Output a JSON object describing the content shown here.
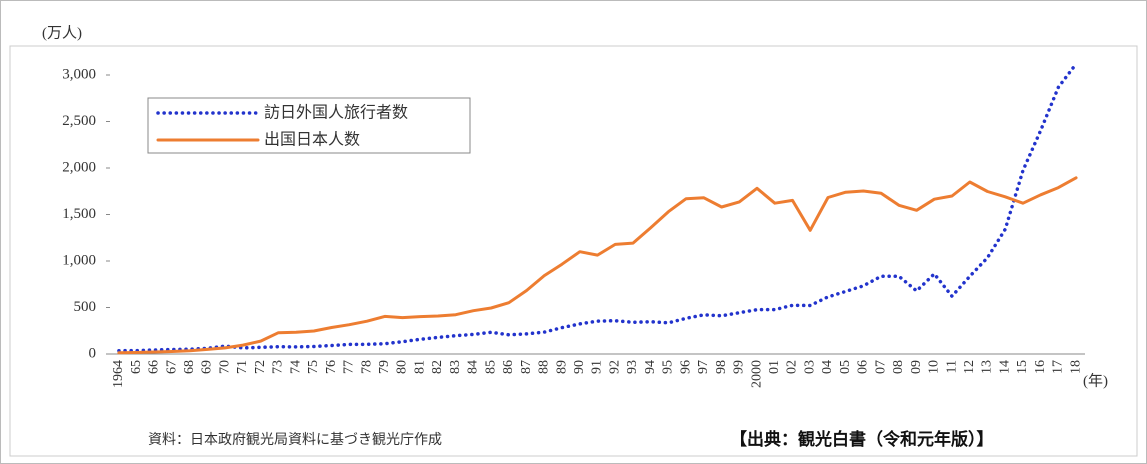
{
  "chart_data": {
    "type": "line",
    "y_label": "(万人)",
    "x_label": "(年)",
    "categories": [
      "1964",
      "65",
      "66",
      "67",
      "68",
      "69",
      "70",
      "71",
      "72",
      "73",
      "74",
      "75",
      "76",
      "77",
      "78",
      "79",
      "80",
      "81",
      "82",
      "83",
      "84",
      "85",
      "86",
      "87",
      "88",
      "89",
      "90",
      "91",
      "92",
      "93",
      "94",
      "95",
      "96",
      "97",
      "98",
      "99",
      "2000",
      "01",
      "02",
      "03",
      "04",
      "05",
      "06",
      "07",
      "08",
      "09",
      "10",
      "11",
      "12",
      "13",
      "14",
      "15",
      "16",
      "17",
      "18"
    ],
    "series": [
      {
        "name": "訪日外国人旅行者数",
        "color": "#2233cc",
        "style": "dotted",
        "values": [
          35,
          37,
          43,
          48,
          52,
          61,
          85,
          66,
          72,
          78,
          76,
          81,
          91,
          103,
          104,
          111,
          132,
          158,
          179,
          197,
          211,
          233,
          206,
          216,
          236,
          284,
          324,
          354,
          358,
          341,
          347,
          335,
          384,
          422,
          411,
          444,
          476,
          477,
          524,
          521,
          614,
          673,
          733,
          835,
          835,
          679,
          861,
          622,
          836,
          1036,
          1341,
          1974,
          2404,
          2869,
          3119
        ]
      },
      {
        "name": "出国日本人数",
        "color": "#ed7d31",
        "style": "solid",
        "values": [
          13,
          16,
          21,
          27,
          34,
          49,
          66,
          96,
          139,
          229,
          234,
          247,
          285,
          315,
          353,
          404,
          391,
          402,
          409,
          423,
          466,
          495,
          552,
          683,
          843,
          966,
          1100,
          1063,
          1179,
          1193,
          1358,
          1530,
          1670,
          1680,
          1581,
          1636,
          1782,
          1622,
          1652,
          1330,
          1683,
          1740,
          1753,
          1729,
          1599,
          1545,
          1664,
          1699,
          1849,
          1747,
          1690,
          1621,
          1712,
          1789,
          1895
        ]
      }
    ],
    "ylim": [
      0,
      3200
    ],
    "yticks": [
      0,
      500,
      {
        "value": 1000,
        "label": "1,000"
      },
      {
        "value": 1500,
        "label": "1,500"
      },
      {
        "value": 2000,
        "label": "2,000"
      },
      {
        "value": 2500,
        "label": "2,500"
      },
      {
        "value": 3000,
        "label": "3,000"
      }
    ],
    "grid": false,
    "legend": "upper left",
    "note": "資料：日本政府観光局資料に基づき観光庁作成",
    "source": "【出典：観光白書（令和元年版）】"
  }
}
